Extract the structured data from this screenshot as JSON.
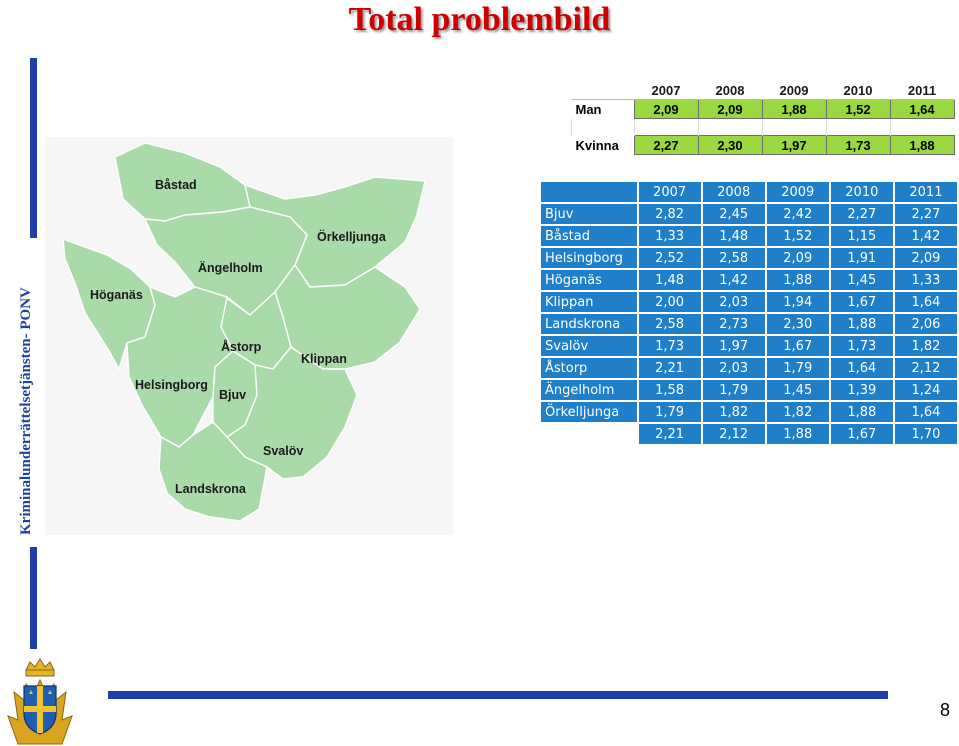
{
  "title": "Total problembild",
  "side_text": "Kriminalunderrättelsetjänsten- PONV",
  "page_number": "8",
  "colors": {
    "brand_blue": "#1f3fa6",
    "title_red": "#cc0000",
    "table_blue": "#1f7fc8",
    "gender_green": "#99d83e",
    "map_green": "#a8dca8"
  },
  "map_labels": [
    "Båstad",
    "Örkelljunga",
    "Ängelholm",
    "Höganäs",
    "Åstorp",
    "Klippan",
    "Helsingborg",
    "Bjuv",
    "Svalöv",
    "Landskrona"
  ],
  "gender_table": {
    "years": [
      "2007",
      "2008",
      "2009",
      "2010",
      "2011"
    ],
    "rows": [
      {
        "label": "Man",
        "values": [
          "2,09",
          "2,09",
          "1,88",
          "1,52",
          "1,64"
        ]
      },
      {
        "label": "Kvinna",
        "values": [
          "2,27",
          "2,30",
          "1,97",
          "1,73",
          "1,88"
        ]
      }
    ]
  },
  "municipality_table": {
    "years": [
      "2007",
      "2008",
      "2009",
      "2010",
      "2011"
    ],
    "rows": [
      {
        "name": "Bjuv",
        "values": [
          "2,82",
          "2,45",
          "2,42",
          "2,27",
          "2,27"
        ]
      },
      {
        "name": "Båstad",
        "values": [
          "1,33",
          "1,48",
          "1,52",
          "1,15",
          "1,42"
        ]
      },
      {
        "name": "Helsingborg",
        "values": [
          "2,52",
          "2,58",
          "2,09",
          "1,91",
          "2,09"
        ]
      },
      {
        "name": "Höganäs",
        "values": [
          "1,48",
          "1,42",
          "1,88",
          "1,45",
          "1,33"
        ]
      },
      {
        "name": "Klippan",
        "values": [
          "2,00",
          "2,03",
          "1,94",
          "1,67",
          "1,64"
        ]
      },
      {
        "name": "Landskrona",
        "values": [
          "2,58",
          "2,73",
          "2,30",
          "1,88",
          "2,06"
        ]
      },
      {
        "name": "Svalöv",
        "values": [
          "1,73",
          "1,97",
          "1,67",
          "1,73",
          "1,82"
        ]
      },
      {
        "name": "Åstorp",
        "values": [
          "2,21",
          "2,03",
          "1,79",
          "1,64",
          "2,12"
        ]
      },
      {
        "name": "Ängelholm",
        "values": [
          "1,58",
          "1,79",
          "1,45",
          "1,39",
          "1,24"
        ]
      },
      {
        "name": "Örkelljunga",
        "values": [
          "1,79",
          "1,82",
          "1,82",
          "1,88",
          "1,64"
        ]
      }
    ],
    "total": [
      "2,21",
      "2,12",
      "1,88",
      "1,67",
      "1,70"
    ]
  }
}
